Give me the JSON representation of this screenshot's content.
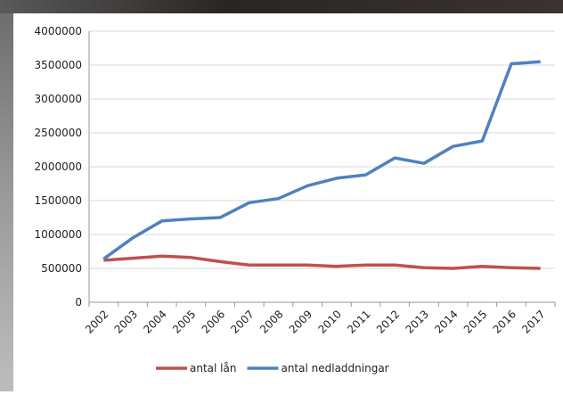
{
  "chart_data": {
    "type": "line",
    "categories": [
      "2002",
      "2003",
      "2004",
      "2005",
      "2006",
      "2007",
      "2008",
      "2009",
      "2010",
      "2011",
      "2012",
      "2013",
      "2014",
      "2015",
      "2016",
      "2017"
    ],
    "series": [
      {
        "name": "antal lån",
        "color": "#c0504d",
        "values": [
          620000,
          650000,
          680000,
          660000,
          600000,
          550000,
          550000,
          550000,
          530000,
          550000,
          550000,
          510000,
          500000,
          530000,
          510000,
          500000
        ]
      },
      {
        "name": "antal nedladdningar",
        "color": "#4f81bd",
        "values": [
          640000,
          950000,
          1200000,
          1230000,
          1250000,
          1470000,
          1530000,
          1720000,
          1830000,
          1880000,
          2130000,
          2050000,
          2300000,
          2380000,
          3520000,
          3550000
        ]
      }
    ],
    "ylim": [
      0,
      4000000
    ],
    "yticks": [
      0,
      500000,
      1000000,
      1500000,
      2000000,
      2500000,
      3000000,
      3500000,
      4000000
    ],
    "grid": true,
    "legend": "bottom"
  }
}
